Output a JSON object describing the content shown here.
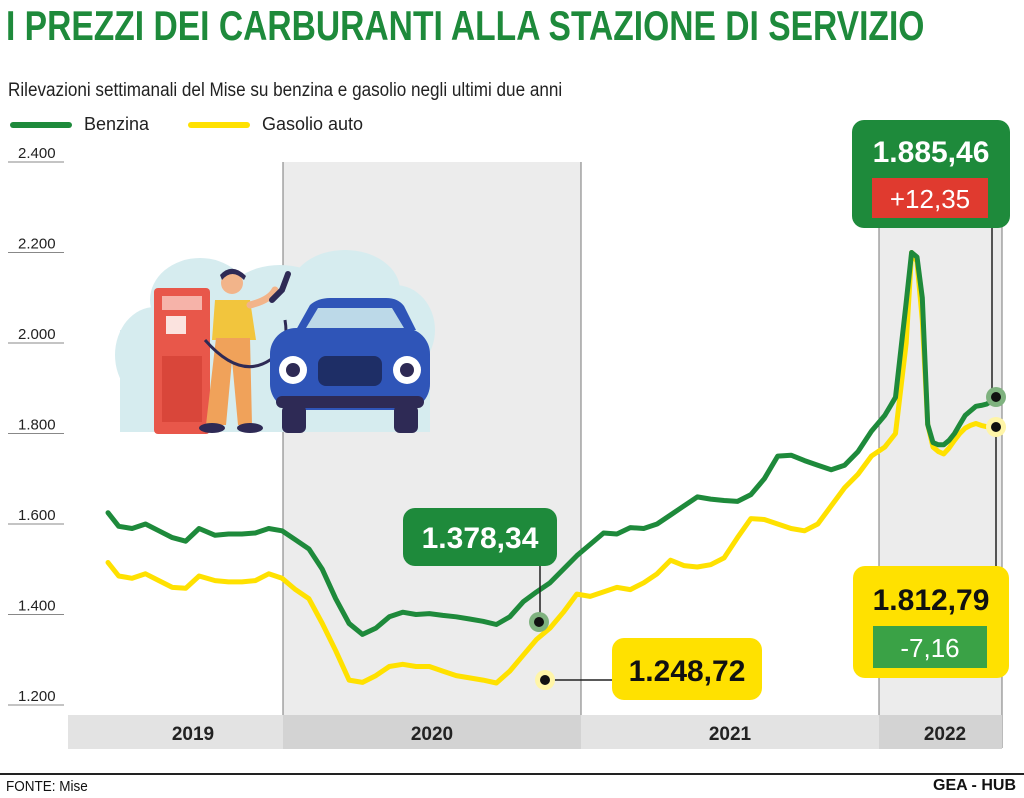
{
  "header": {
    "title": "I PREZZI DEI CARBURANTI ALLA STAZIONE DI SERVIZIO",
    "subtitle": "Rilevazioni settimanali del Mise su benzina e gasolio negli ultimi due anni"
  },
  "legend": [
    {
      "label": "Benzina",
      "color": "#1e8a3b"
    },
    {
      "label": "Gasolio auto",
      "color": "#ffe100"
    }
  ],
  "colors": {
    "benzina": "#1e8a3b",
    "gasolio": "#ffe100",
    "increase_badge": "#e03a2f",
    "decrease_badge": "#3aa246",
    "year_band": "#e3e3e3",
    "shaded_period": "#ececec"
  },
  "illustration": {
    "icon": "fuel-station-illustration"
  },
  "callouts": [
    {
      "value": "1.885,46",
      "delta": "+12,35",
      "series": "Benzina"
    },
    {
      "value": "1.378,34",
      "series": "Benzina"
    },
    {
      "value": "1.248,72",
      "series": "Gasolio auto"
    },
    {
      "value": "1.812,79",
      "delta": "-7,16",
      "series": "Gasolio auto"
    }
  ],
  "chart_data": {
    "type": "line",
    "title": "I PREZZI DEI CARBURANTI ALLA STAZIONE DI SERVIZIO",
    "subtitle": "Rilevazioni settimanali del Mise su benzina e gasolio negli ultimi due anni",
    "x_unit": "year",
    "x_range": [
      2019.1,
      2022.43
    ],
    "ylim": [
      1200,
      2400
    ],
    "y_ticks": [
      1200,
      1400,
      1600,
      1800,
      2000,
      2200,
      2400
    ],
    "y_tick_labels": [
      "1.200",
      "1.400",
      "1.600",
      "1.800",
      "2.000",
      "2.200",
      "2.400"
    ],
    "x_categories": [
      "2019",
      "2020",
      "2021",
      "2022"
    ],
    "grid": false,
    "legend_position": "top-left",
    "series": [
      {
        "name": "Benzina",
        "x": [
          2019.1,
          2019.14,
          2019.19,
          2019.24,
          2019.29,
          2019.34,
          2019.39,
          2019.44,
          2019.5,
          2019.55,
          2019.6,
          2019.65,
          2019.7,
          2019.75,
          2019.8,
          2019.85,
          2019.9,
          2019.95,
          2020.0,
          2020.05,
          2020.1,
          2020.15,
          2020.2,
          2020.25,
          2020.3,
          2020.35,
          2020.4,
          2020.45,
          2020.5,
          2020.55,
          2020.6,
          2020.65,
          2020.7,
          2020.75,
          2020.8,
          2020.85,
          2020.9,
          2020.95,
          2021.0,
          2021.05,
          2021.1,
          2021.15,
          2021.2,
          2021.25,
          2021.3,
          2021.35,
          2021.4,
          2021.45,
          2021.5,
          2021.55,
          2021.6,
          2021.65,
          2021.7,
          2021.75,
          2021.8,
          2021.85,
          2021.9,
          2021.95,
          2022.0,
          2022.04,
          2022.08,
          2022.1,
          2022.12,
          2022.14,
          2022.16,
          2022.18,
          2022.2,
          2022.22,
          2022.24,
          2022.26,
          2022.28,
          2022.3,
          2022.32,
          2022.34,
          2022.36,
          2022.38,
          2022.4,
          2022.43
        ],
        "values": [
          1625,
          1595,
          1590,
          1600,
          1585,
          1570,
          1562,
          1590,
          1575,
          1578,
          1578,
          1580,
          1590,
          1585,
          1565,
          1545,
          1500,
          1435,
          1380,
          1356,
          1370,
          1395,
          1405,
          1400,
          1402,
          1398,
          1395,
          1390,
          1385,
          1378,
          1395,
          1428,
          1450,
          1470,
          1500,
          1530,
          1555,
          1580,
          1578,
          1592,
          1590,
          1600,
          1620,
          1640,
          1660,
          1655,
          1652,
          1650,
          1665,
          1700,
          1750,
          1752,
          1740,
          1730,
          1720,
          1730,
          1760,
          1805,
          1840,
          1880,
          2090,
          2200,
          2190,
          2100,
          1820,
          1780,
          1775,
          1775,
          1785,
          1800,
          1820,
          1840,
          1850,
          1860,
          1862,
          1865,
          1872,
          1885.46
        ]
      },
      {
        "name": "Gasolio auto",
        "x": [
          2019.1,
          2019.14,
          2019.19,
          2019.24,
          2019.29,
          2019.34,
          2019.39,
          2019.44,
          2019.5,
          2019.55,
          2019.6,
          2019.65,
          2019.7,
          2019.75,
          2019.8,
          2019.85,
          2019.9,
          2019.95,
          2020.0,
          2020.05,
          2020.1,
          2020.15,
          2020.2,
          2020.25,
          2020.3,
          2020.35,
          2020.4,
          2020.45,
          2020.5,
          2020.55,
          2020.6,
          2020.65,
          2020.7,
          2020.75,
          2020.8,
          2020.85,
          2020.9,
          2020.95,
          2021.0,
          2021.05,
          2021.1,
          2021.15,
          2021.2,
          2021.25,
          2021.3,
          2021.35,
          2021.4,
          2021.45,
          2021.5,
          2021.55,
          2021.6,
          2021.65,
          2021.7,
          2021.75,
          2021.8,
          2021.85,
          2021.9,
          2021.95,
          2022.0,
          2022.04,
          2022.08,
          2022.1,
          2022.12,
          2022.14,
          2022.16,
          2022.18,
          2022.2,
          2022.22,
          2022.24,
          2022.26,
          2022.28,
          2022.3,
          2022.32,
          2022.34,
          2022.36,
          2022.38,
          2022.4,
          2022.43
        ],
        "values": [
          1515,
          1485,
          1480,
          1490,
          1475,
          1460,
          1458,
          1485,
          1475,
          1472,
          1472,
          1475,
          1490,
          1480,
          1455,
          1435,
          1380,
          1320,
          1255,
          1250,
          1265,
          1285,
          1290,
          1285,
          1285,
          1275,
          1265,
          1260,
          1255,
          1248.72,
          1275,
          1310,
          1345,
          1370,
          1405,
          1445,
          1440,
          1450,
          1460,
          1455,
          1470,
          1490,
          1520,
          1508,
          1505,
          1510,
          1525,
          1570,
          1612,
          1610,
          1600,
          1590,
          1585,
          1600,
          1640,
          1680,
          1710,
          1750,
          1770,
          1800,
          2000,
          2200,
          2180,
          2050,
          1820,
          1770,
          1760,
          1755,
          1768,
          1785,
          1800,
          1812,
          1818,
          1822,
          1818,
          1815,
          1813,
          1812.79
        ]
      }
    ]
  },
  "footer": {
    "source": "FONTE: Mise",
    "brand": "GEA - HUB"
  }
}
